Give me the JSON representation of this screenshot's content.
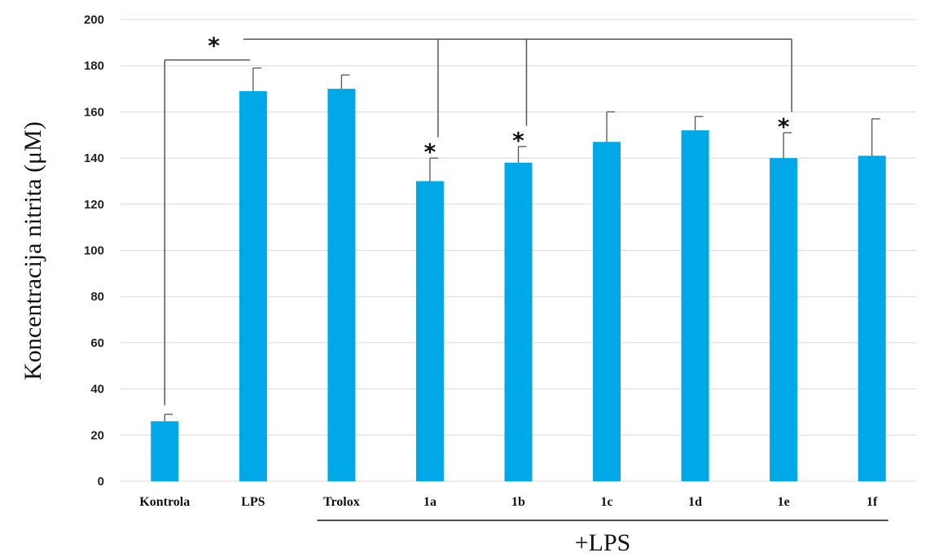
{
  "chart_data": {
    "type": "bar",
    "categories": [
      "Kontrola",
      "LPS",
      "Trolox",
      "1a",
      "1b",
      "1c",
      "1d",
      "1e",
      "1f"
    ],
    "values": [
      26,
      169,
      170,
      130,
      138,
      147,
      152,
      140,
      141
    ],
    "error": [
      3,
      10,
      6,
      10,
      7,
      13,
      6,
      11,
      16
    ],
    "ylabel": "Koncentracija nitrita (μM)",
    "xlabel": "",
    "ylim": [
      0,
      200
    ],
    "yticks": [
      0,
      20,
      40,
      60,
      80,
      100,
      120,
      140,
      160,
      180,
      200
    ],
    "grid": true,
    "bar_color": "#00A8E8",
    "group_label": "+LPS",
    "significance": [
      {
        "from": "Kontrola",
        "to": "LPS",
        "label": "*"
      },
      {
        "from": "LPS",
        "to": "1a",
        "label": "*"
      },
      {
        "from": "LPS",
        "to": "1b",
        "label": "*"
      },
      {
        "from": "LPS",
        "to": "1e",
        "label": "*"
      }
    ]
  }
}
